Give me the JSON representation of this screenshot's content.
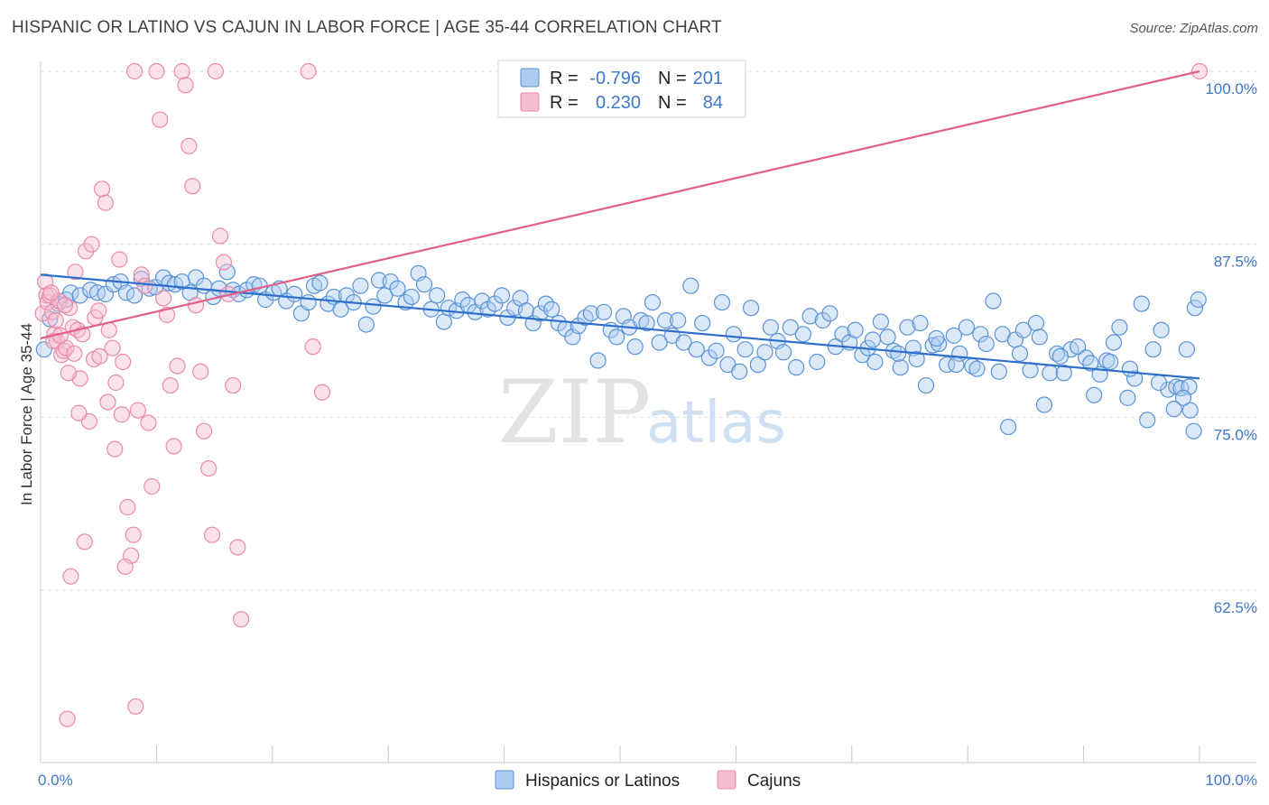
{
  "title": "HISPANIC OR LATINO VS CAJUN IN LABOR FORCE | AGE 35-44 CORRELATION CHART",
  "source": "Source: ZipAtlas.com",
  "watermark": {
    "zip": "ZIP",
    "atlas": "atlas"
  },
  "colors": {
    "blue_fill": "#aecbf0",
    "blue_stroke": "#5b93d6",
    "blue_line": "#2e6fcc",
    "pink_fill": "#f6bfd0",
    "pink_stroke": "#e98aa8",
    "pink_line": "#e0608a",
    "axis_label": "#3f78c8",
    "grid": "#dddddd"
  },
  "legend": {
    "rows": [
      {
        "r_label": "R =",
        "r_value": "-0.796",
        "n_label": "N =",
        "n_value": "201"
      },
      {
        "r_label": "R =",
        "r_value": "0.230",
        "n_label": "N =",
        "n_value": "84"
      }
    ]
  },
  "bottom_legend": [
    "Hispanics or Latinos",
    "Cajuns"
  ],
  "chart_data": {
    "type": "scatter",
    "title": "HISPANIC OR LATINO VS CAJUN IN LABOR FORCE | AGE 35-44 CORRELATION CHART",
    "xlabel": "",
    "ylabel": "In Labor Force | Age 35-44",
    "x_tick_labels": [
      "0.0%",
      "100.0%"
    ],
    "y_tick_labels": [
      "100.0%",
      "87.5%",
      "75.0%",
      "62.5%"
    ],
    "y_ticks": [
      100.0,
      87.5,
      75.0,
      62.5
    ],
    "xlim": [
      0,
      100
    ],
    "ylim": [
      51.5,
      101.5
    ],
    "grid": true,
    "legend_position": "top-center",
    "series": [
      {
        "name": "Hispanics or Latinos",
        "r": -0.796,
        "n": 201,
        "trend": {
          "x": [
            0,
            100
          ],
          "y": [
            85.3,
            77.8
          ]
        },
        "points": [
          [
            0.3,
            79.9
          ],
          [
            0.8,
            82.1
          ],
          [
            1.5,
            83.2
          ],
          [
            2.2,
            83.5
          ],
          [
            2.6,
            84.0
          ],
          [
            3.4,
            83.8
          ],
          [
            4.3,
            84.2
          ],
          [
            4.9,
            84.0
          ],
          [
            5.6,
            83.9
          ],
          [
            6.3,
            84.6
          ],
          [
            6.9,
            84.8
          ],
          [
            7.4,
            84.0
          ],
          [
            8.1,
            83.8
          ],
          [
            8.7,
            85.0
          ],
          [
            9.4,
            84.3
          ],
          [
            9.9,
            84.4
          ],
          [
            10.6,
            85.1
          ],
          [
            11.1,
            84.7
          ],
          [
            11.6,
            84.6
          ],
          [
            12.2,
            84.8
          ],
          [
            12.9,
            84.0
          ],
          [
            13.4,
            85.1
          ],
          [
            14.1,
            84.5
          ],
          [
            14.9,
            83.7
          ],
          [
            15.4,
            84.3
          ],
          [
            16.1,
            85.5
          ],
          [
            16.6,
            84.2
          ],
          [
            17.1,
            83.9
          ],
          [
            17.8,
            84.2
          ],
          [
            18.4,
            84.6
          ],
          [
            18.9,
            84.5
          ],
          [
            19.4,
            83.5
          ],
          [
            20.1,
            84.0
          ],
          [
            20.6,
            84.3
          ],
          [
            21.2,
            83.4
          ],
          [
            21.9,
            83.9
          ],
          [
            22.5,
            82.5
          ],
          [
            23.1,
            83.3
          ],
          [
            23.6,
            84.5
          ],
          [
            24.1,
            84.7
          ],
          [
            24.8,
            83.2
          ],
          [
            25.3,
            83.7
          ],
          [
            25.9,
            82.8
          ],
          [
            26.4,
            83.8
          ],
          [
            27.0,
            83.3
          ],
          [
            27.6,
            84.5
          ],
          [
            28.1,
            81.7
          ],
          [
            28.7,
            83.0
          ],
          [
            29.2,
            84.9
          ],
          [
            29.7,
            83.8
          ],
          [
            30.2,
            84.8
          ],
          [
            30.8,
            84.3
          ],
          [
            31.5,
            83.3
          ],
          [
            32.0,
            83.7
          ],
          [
            32.6,
            85.4
          ],
          [
            33.1,
            84.6
          ],
          [
            33.7,
            82.8
          ],
          [
            34.2,
            83.8
          ],
          [
            34.8,
            81.9
          ],
          [
            35.2,
            82.9
          ],
          [
            35.9,
            82.7
          ],
          [
            36.4,
            83.5
          ],
          [
            36.9,
            83.1
          ],
          [
            37.5,
            82.6
          ],
          [
            38.1,
            83.4
          ],
          [
            38.6,
            82.8
          ],
          [
            39.2,
            83.2
          ],
          [
            39.8,
            83.8
          ],
          [
            40.3,
            82.2
          ],
          [
            40.9,
            82.9
          ],
          [
            41.4,
            83.6
          ],
          [
            41.9,
            82.7
          ],
          [
            42.5,
            81.8
          ],
          [
            43.1,
            82.5
          ],
          [
            43.6,
            83.2
          ],
          [
            44.1,
            82.8
          ],
          [
            44.7,
            81.8
          ],
          [
            45.3,
            81.4
          ],
          [
            45.9,
            80.8
          ],
          [
            46.4,
            81.6
          ],
          [
            47.0,
            82.2
          ],
          [
            47.5,
            82.5
          ],
          [
            48.1,
            79.1
          ],
          [
            48.6,
            82.6
          ],
          [
            49.2,
            81.3
          ],
          [
            49.7,
            80.8
          ],
          [
            50.3,
            82.3
          ],
          [
            50.8,
            81.5
          ],
          [
            51.3,
            80.1
          ],
          [
            51.8,
            82.0
          ],
          [
            52.3,
            81.8
          ],
          [
            52.8,
            83.3
          ],
          [
            53.4,
            80.4
          ],
          [
            53.9,
            82.0
          ],
          [
            54.5,
            80.9
          ],
          [
            55.0,
            82.0
          ],
          [
            55.5,
            80.4
          ],
          [
            56.1,
            84.5
          ],
          [
            56.6,
            79.9
          ],
          [
            57.1,
            81.8
          ],
          [
            57.7,
            79.3
          ],
          [
            58.3,
            79.8
          ],
          [
            58.8,
            83.3
          ],
          [
            59.3,
            78.8
          ],
          [
            59.8,
            81.0
          ],
          [
            60.3,
            78.3
          ],
          [
            60.8,
            79.9
          ],
          [
            61.3,
            82.9
          ],
          [
            61.9,
            78.8
          ],
          [
            62.5,
            79.7
          ],
          [
            63.0,
            81.5
          ],
          [
            63.6,
            80.5
          ],
          [
            64.1,
            79.7
          ],
          [
            64.7,
            81.5
          ],
          [
            65.2,
            78.6
          ],
          [
            65.8,
            81.0
          ],
          [
            66.4,
            82.3
          ],
          [
            67.0,
            79.0
          ],
          [
            67.5,
            82.0
          ],
          [
            68.1,
            82.5
          ],
          [
            68.6,
            80.1
          ],
          [
            69.2,
            81.0
          ],
          [
            69.8,
            80.4
          ],
          [
            70.3,
            81.3
          ],
          [
            70.9,
            79.5
          ],
          [
            71.4,
            80.0
          ],
          [
            72.0,
            79.0
          ],
          [
            72.5,
            81.9
          ],
          [
            73.1,
            80.8
          ],
          [
            73.6,
            79.8
          ],
          [
            74.2,
            78.6
          ],
          [
            74.8,
            81.5
          ],
          [
            75.3,
            80.0
          ],
          [
            75.9,
            81.8
          ],
          [
            76.4,
            77.3
          ],
          [
            77.0,
            80.2
          ],
          [
            77.5,
            80.3
          ],
          [
            78.2,
            78.8
          ],
          [
            78.8,
            80.9
          ],
          [
            79.3,
            79.6
          ],
          [
            79.9,
            81.5
          ],
          [
            80.4,
            78.7
          ],
          [
            81.1,
            81.0
          ],
          [
            81.6,
            80.3
          ],
          [
            82.2,
            83.4
          ],
          [
            83.0,
            81.0
          ],
          [
            83.5,
            74.3
          ],
          [
            84.1,
            80.6
          ],
          [
            84.8,
            81.3
          ],
          [
            85.4,
            78.4
          ],
          [
            85.9,
            81.8
          ],
          [
            86.6,
            75.9
          ],
          [
            87.1,
            78.2
          ],
          [
            87.7,
            79.6
          ],
          [
            88.3,
            78.2
          ],
          [
            88.9,
            79.9
          ],
          [
            89.5,
            80.1
          ],
          [
            90.2,
            79.3
          ],
          [
            90.9,
            76.6
          ],
          [
            91.4,
            78.1
          ],
          [
            92.0,
            79.1
          ],
          [
            92.6,
            80.4
          ],
          [
            93.1,
            81.5
          ],
          [
            93.8,
            76.4
          ],
          [
            94.4,
            77.8
          ],
          [
            95.0,
            83.2
          ],
          [
            95.5,
            74.8
          ],
          [
            96.0,
            79.9
          ],
          [
            96.7,
            81.3
          ],
          [
            97.3,
            77.0
          ],
          [
            98.0,
            77.2
          ],
          [
            98.4,
            77.1
          ],
          [
            98.9,
            79.9
          ],
          [
            99.1,
            77.2
          ],
          [
            99.6,
            82.9
          ],
          [
            99.9,
            83.5
          ],
          [
            99.5,
            74.0
          ],
          [
            99.2,
            75.5
          ],
          [
            98.6,
            76.4
          ],
          [
            97.8,
            75.6
          ],
          [
            96.5,
            77.5
          ],
          [
            94.0,
            78.5
          ],
          [
            92.3,
            79.0
          ],
          [
            90.6,
            78.9
          ],
          [
            88.0,
            79.4
          ],
          [
            86.2,
            80.8
          ],
          [
            84.5,
            79.6
          ],
          [
            82.7,
            78.3
          ],
          [
            80.8,
            78.5
          ],
          [
            79.0,
            78.8
          ],
          [
            77.3,
            80.7
          ],
          [
            75.6,
            79.2
          ],
          [
            74.0,
            79.6
          ],
          [
            71.8,
            80.6
          ]
        ]
      },
      {
        "name": "Cajuns",
        "r": 0.23,
        "n": 84,
        "trend": {
          "x": [
            0,
            100
          ],
          "y": [
            80.7,
            100.0
          ]
        },
        "points": [
          [
            0.2,
            82.5
          ],
          [
            0.4,
            84.8
          ],
          [
            0.5,
            83.8
          ],
          [
            0.6,
            83.3
          ],
          [
            0.8,
            83.8
          ],
          [
            1.0,
            82.6
          ],
          [
            1.2,
            81.0
          ],
          [
            1.4,
            80.5
          ],
          [
            1.6,
            83.4
          ],
          [
            1.8,
            79.5
          ],
          [
            2.0,
            79.8
          ],
          [
            2.2,
            80.0
          ],
          [
            2.5,
            82.9
          ],
          [
            2.8,
            81.5
          ],
          [
            3.0,
            85.5
          ],
          [
            3.2,
            81.3
          ],
          [
            3.4,
            77.8
          ],
          [
            3.6,
            81.0
          ],
          [
            3.9,
            87.0
          ],
          [
            4.2,
            74.7
          ],
          [
            4.4,
            87.5
          ],
          [
            4.7,
            82.2
          ],
          [
            5.0,
            82.7
          ],
          [
            5.3,
            91.5
          ],
          [
            5.6,
            90.5
          ],
          [
            5.9,
            81.3
          ],
          [
            6.2,
            80.0
          ],
          [
            6.5,
            77.5
          ],
          [
            6.8,
            86.4
          ],
          [
            7.1,
            79.0
          ],
          [
            7.5,
            68.5
          ],
          [
            7.8,
            65.0
          ],
          [
            8.1,
            100.0
          ],
          [
            8.4,
            75.5
          ],
          [
            8.7,
            85.3
          ],
          [
            9.0,
            84.5
          ],
          [
            9.3,
            74.6
          ],
          [
            9.6,
            70.0
          ],
          [
            10.0,
            100.0
          ],
          [
            10.3,
            96.5
          ],
          [
            10.6,
            83.6
          ],
          [
            10.9,
            82.4
          ],
          [
            11.2,
            77.3
          ],
          [
            11.5,
            72.9
          ],
          [
            11.8,
            78.7
          ],
          [
            12.2,
            100.0
          ],
          [
            12.5,
            99.0
          ],
          [
            12.8,
            94.6
          ],
          [
            13.1,
            91.7
          ],
          [
            13.4,
            83.1
          ],
          [
            13.8,
            78.3
          ],
          [
            14.1,
            74.0
          ],
          [
            14.5,
            71.3
          ],
          [
            14.8,
            66.5
          ],
          [
            15.1,
            100.0
          ],
          [
            15.5,
            88.1
          ],
          [
            15.8,
            86.2
          ],
          [
            16.2,
            83.9
          ],
          [
            16.6,
            77.3
          ],
          [
            17.0,
            65.6
          ],
          [
            17.3,
            60.4
          ],
          [
            2.3,
            53.2
          ],
          [
            2.6,
            63.5
          ],
          [
            3.8,
            66.0
          ],
          [
            5.8,
            76.1
          ],
          [
            6.4,
            72.7
          ],
          [
            7.0,
            75.2
          ],
          [
            7.3,
            64.2
          ],
          [
            8.0,
            66.5
          ],
          [
            8.2,
            54.1
          ],
          [
            0.9,
            84.0
          ],
          [
            1.1,
            80.5
          ],
          [
            1.3,
            82.0
          ],
          [
            1.7,
            80.9
          ],
          [
            2.1,
            83.1
          ],
          [
            2.4,
            78.2
          ],
          [
            2.9,
            79.6
          ],
          [
            3.3,
            75.3
          ],
          [
            4.6,
            79.2
          ],
          [
            5.1,
            79.4
          ],
          [
            23.1,
            100.0
          ],
          [
            23.5,
            80.1
          ],
          [
            24.3,
            76.8
          ],
          [
            100.0,
            100.0
          ]
        ]
      }
    ]
  }
}
